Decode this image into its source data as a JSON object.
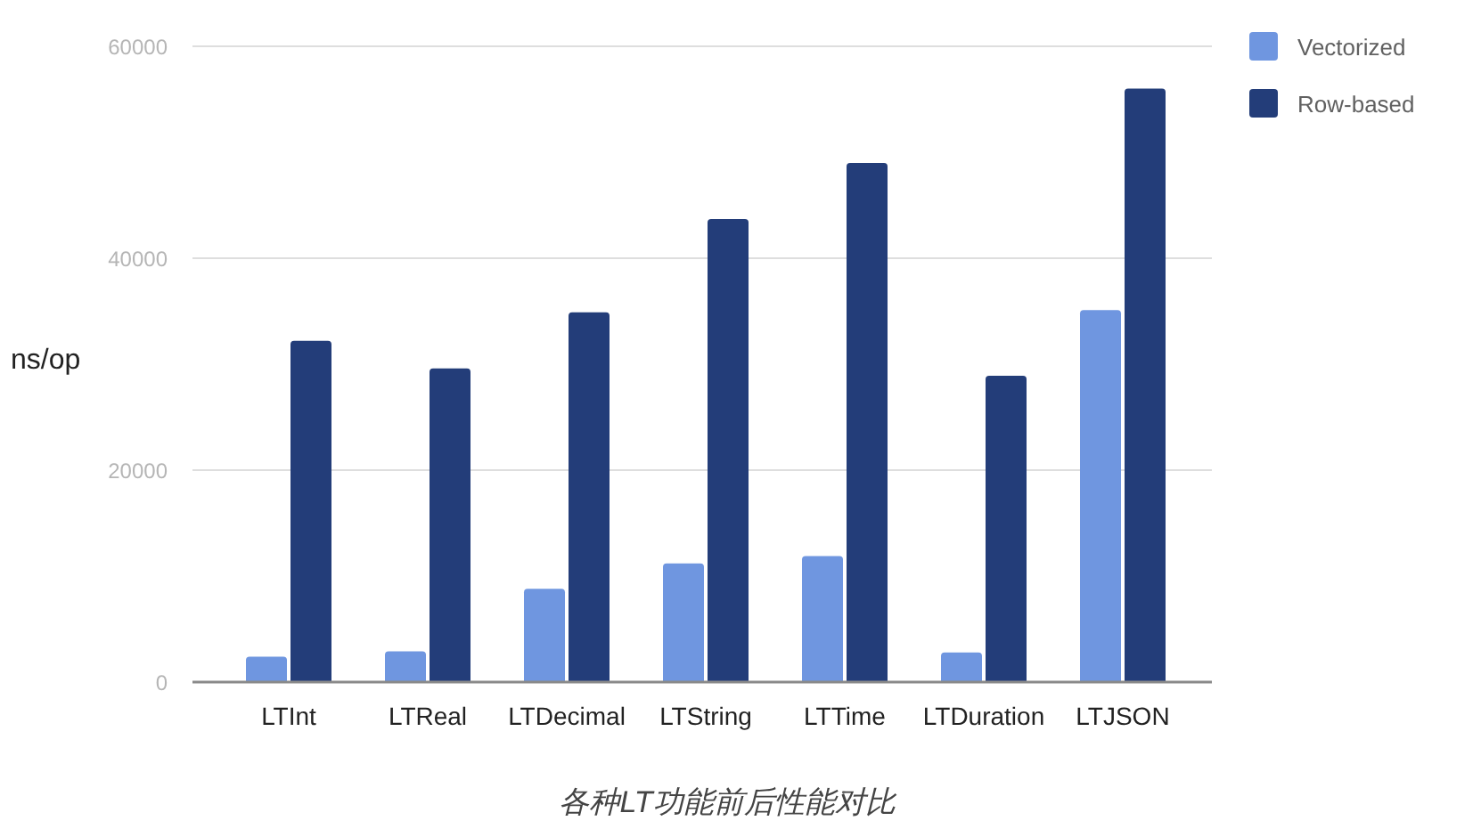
{
  "chart_data": {
    "type": "bar",
    "categories": [
      "LTInt",
      "LTReal",
      "LTDecimal",
      "LTString",
      "LTTime",
      "LTDuration",
      "LTJSON"
    ],
    "series": [
      {
        "name": "Vectorized",
        "color": "#6f96e0",
        "values": [
          2400,
          2900,
          8800,
          11200,
          11900,
          2800,
          35100
        ]
      },
      {
        "name": "Row-based",
        "color": "#233d79",
        "values": [
          32200,
          29600,
          34900,
          43700,
          49000,
          28900,
          56000
        ]
      }
    ],
    "ylabel": "ns/op",
    "ylim": [
      0,
      60000
    ],
    "yticks": [
      0,
      20000,
      40000,
      60000
    ],
    "grid": "y",
    "legend": "top right",
    "annotations": [
      "各种LT功能前后性能对比"
    ]
  }
}
